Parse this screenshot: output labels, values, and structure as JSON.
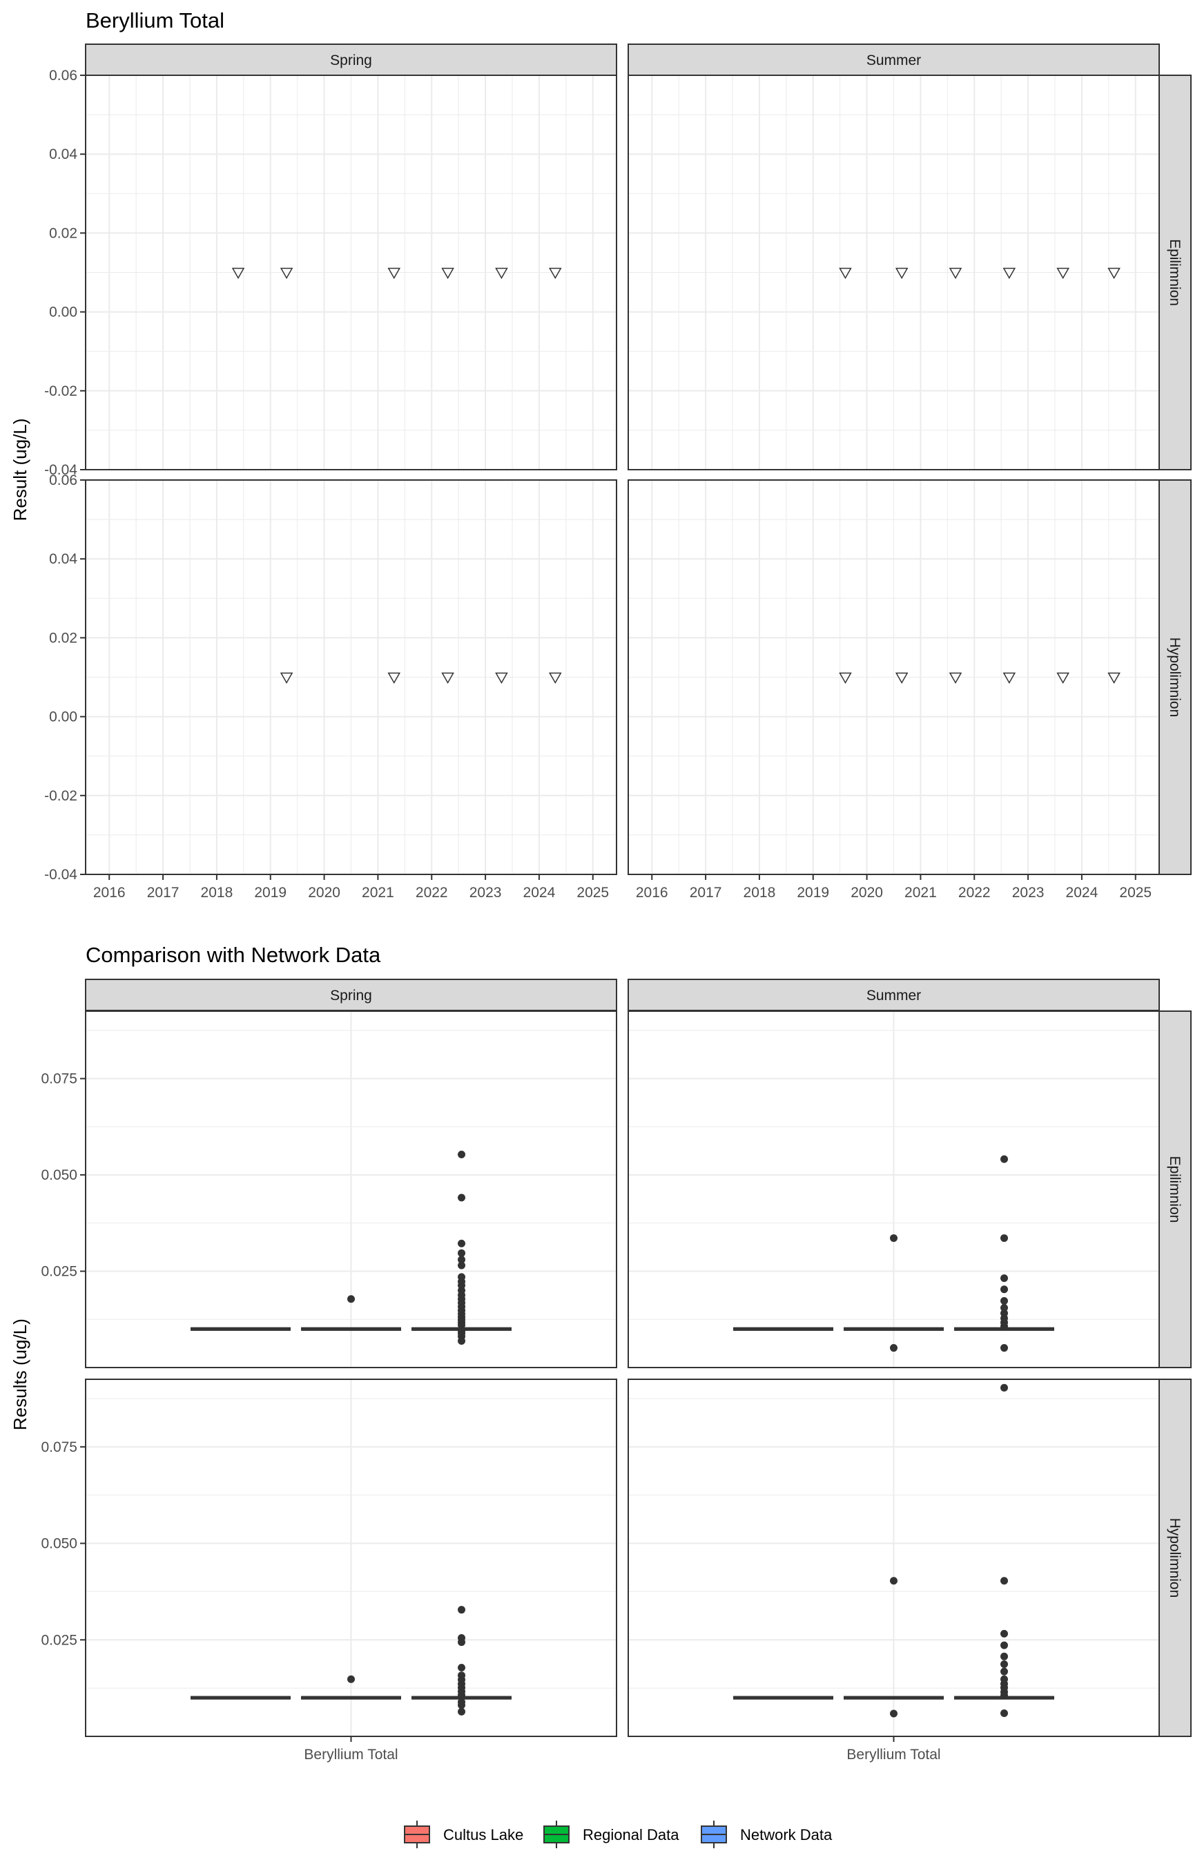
{
  "chart_data": [
    {
      "type": "scatter",
      "title": "Beryllium Total",
      "ylabel": "Result (ug/L)",
      "xlabel": "",
      "x_range": [
        2015.56,
        2025.44
      ],
      "ylim": [
        -0.04,
        0.06
      ],
      "x_ticks": [
        "2016",
        "2017",
        "2018",
        "2019",
        "2020",
        "2021",
        "2022",
        "2023",
        "2024",
        "2025"
      ],
      "y_ticks": [
        "0.06",
        "0.04",
        "0.02",
        "0.00",
        "-0.02",
        "-0.04"
      ],
      "grid": true,
      "col_facets": [
        "Spring",
        "Summer"
      ],
      "row_facets": [
        "Epilimnion",
        "Hypolimnion"
      ],
      "marker": "open-down-triangle",
      "panels": [
        {
          "col": "Spring",
          "row": "Epilimnion",
          "x": [
            2018.4,
            2019.3,
            2021.3,
            2022.3,
            2023.3,
            2024.3
          ],
          "y": [
            0.01,
            0.01,
            0.01,
            0.01,
            0.01,
            0.01
          ]
        },
        {
          "col": "Summer",
          "row": "Epilimnion",
          "x": [
            2019.6,
            2020.65,
            2021.65,
            2022.65,
            2023.65,
            2024.6
          ],
          "y": [
            0.01,
            0.01,
            0.01,
            0.01,
            0.01,
            0.01
          ]
        },
        {
          "col": "Spring",
          "row": "Hypolimnion",
          "x": [
            2019.3,
            2021.3,
            2022.3,
            2023.3,
            2024.3
          ],
          "y": [
            0.01,
            0.01,
            0.01,
            0.01,
            0.01
          ]
        },
        {
          "col": "Summer",
          "row": "Hypolimnion",
          "x": [
            2019.6,
            2020.65,
            2021.65,
            2022.65,
            2023.65,
            2024.6
          ],
          "y": [
            0.01,
            0.01,
            0.01,
            0.01,
            0.01,
            0.01
          ]
        }
      ]
    },
    {
      "type": "boxplot",
      "title": "Comparison with Network Data",
      "ylabel": "Results (ug/L)",
      "xlabel": "",
      "categories": [
        "Beryllium Total"
      ],
      "ylim": [
        0.0,
        0.0925
      ],
      "y_ticks": [
        0.025,
        0.05,
        0.075
      ],
      "y_tick_labels": [
        "0.025",
        "0.050",
        "0.075"
      ],
      "grid": true,
      "col_facets": [
        "Spring",
        "Summer"
      ],
      "row_facets": [
        "Epilimnion",
        "Hypolimnion"
      ],
      "legend": {
        "position": "bottom",
        "entries": [
          {
            "name": "Cultus Lake",
            "color": "#F8766D"
          },
          {
            "name": "Regional Data",
            "color": "#00BA38"
          },
          {
            "name": "Network Data",
            "color": "#619CFF"
          }
        ]
      },
      "panels": [
        {
          "col": "Spring",
          "row": "Epilimnion",
          "series": [
            {
              "name": "Cultus Lake",
              "median": 0.01,
              "outliers": []
            },
            {
              "name": "Regional Data",
              "median": 0.01,
              "outliers": [
                0.0178
              ]
            },
            {
              "name": "Network Data",
              "median": 0.01,
              "outliers": [
                0.0069,
                0.0081,
                0.0089,
                0.0095,
                0.011,
                0.0117,
                0.0124,
                0.0131,
                0.0139,
                0.0148,
                0.0158,
                0.0168,
                0.0178,
                0.0188,
                0.02,
                0.0213,
                0.0223,
                0.0235,
                0.0265,
                0.028,
                0.0297,
                0.0322,
                0.0441,
                0.0553
              ]
            }
          ]
        },
        {
          "col": "Summer",
          "row": "Epilimnion",
          "series": [
            {
              "name": "Cultus Lake",
              "median": 0.01,
              "outliers": []
            },
            {
              "name": "Regional Data",
              "median": 0.01,
              "outliers": [
                0.0051,
                0.0336
              ]
            },
            {
              "name": "Network Data",
              "median": 0.01,
              "outliers": [
                0.0051,
                0.0107,
                0.0117,
                0.0128,
                0.0141,
                0.0155,
                0.0173,
                0.0203,
                0.0232,
                0.0336,
                0.0541
              ]
            }
          ]
        },
        {
          "col": "Spring",
          "row": "Hypolimnion",
          "series": [
            {
              "name": "Cultus Lake",
              "median": 0.01,
              "outliers": []
            },
            {
              "name": "Regional Data",
              "median": 0.01,
              "outliers": [
                0.0148
              ]
            },
            {
              "name": "Network Data",
              "median": 0.01,
              "outliers": [
                0.0064,
                0.0081,
                0.0089,
                0.0107,
                0.0116,
                0.0126,
                0.0136,
                0.0147,
                0.0158,
                0.0178,
                0.0244,
                0.0255,
                0.0328
              ]
            }
          ]
        },
        {
          "col": "Summer",
          "row": "Hypolimnion",
          "series": [
            {
              "name": "Cultus Lake",
              "median": 0.01,
              "outliers": []
            },
            {
              "name": "Regional Data",
              "median": 0.01,
              "outliers": [
                0.0059,
                0.0403
              ]
            },
            {
              "name": "Network Data",
              "median": 0.01,
              "outliers": [
                0.006,
                0.0106,
                0.0115,
                0.0126,
                0.0136,
                0.0148,
                0.0168,
                0.0187,
                0.0207,
                0.0236,
                0.0266,
                0.0403,
                0.0903
              ]
            }
          ]
        }
      ]
    }
  ]
}
